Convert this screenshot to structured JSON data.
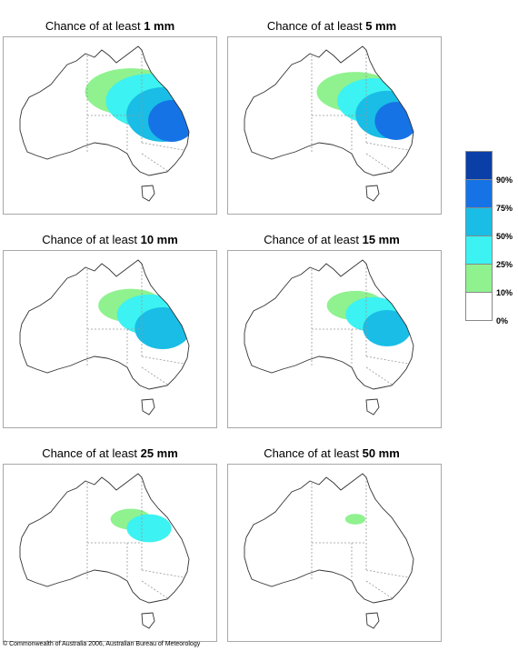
{
  "panels": [
    {
      "prefix": "Chance of at least ",
      "amount": "1 mm",
      "levels": [
        0.45,
        0.62,
        0.78,
        0.9
      ]
    },
    {
      "prefix": "Chance of at least ",
      "amount": "5 mm",
      "levels": [
        0.38,
        0.52,
        0.68,
        0.82
      ]
    },
    {
      "prefix": "Chance of at least ",
      "amount": "10 mm",
      "levels": [
        0.32,
        0.46,
        0.6,
        0.0
      ]
    },
    {
      "prefix": "Chance of at least ",
      "amount": "15 mm",
      "levels": [
        0.28,
        0.4,
        0.52,
        0.0
      ]
    },
    {
      "prefix": "Chance of at least ",
      "amount": "25 mm",
      "levels": [
        0.2,
        0.32,
        0.0,
        0.0
      ]
    },
    {
      "prefix": "Chance of at least ",
      "amount": "50 mm",
      "levels": [
        0.1,
        0.0,
        0.0,
        0.0
      ]
    }
  ],
  "legend": {
    "labels": [
      "90%",
      "75%",
      "50%",
      "25%",
      "10%",
      "0%"
    ],
    "colors": [
      "#0a3fa8",
      "#1673e6",
      "#19bde6",
      "#3cf2f2",
      "#8ff28f",
      "#ffffff"
    ]
  },
  "colors": {
    "coast": "#333333",
    "border": "#999999"
  },
  "footer": "© Commonwealth of Australia 2006, Australian Bureau of Meteorology"
}
